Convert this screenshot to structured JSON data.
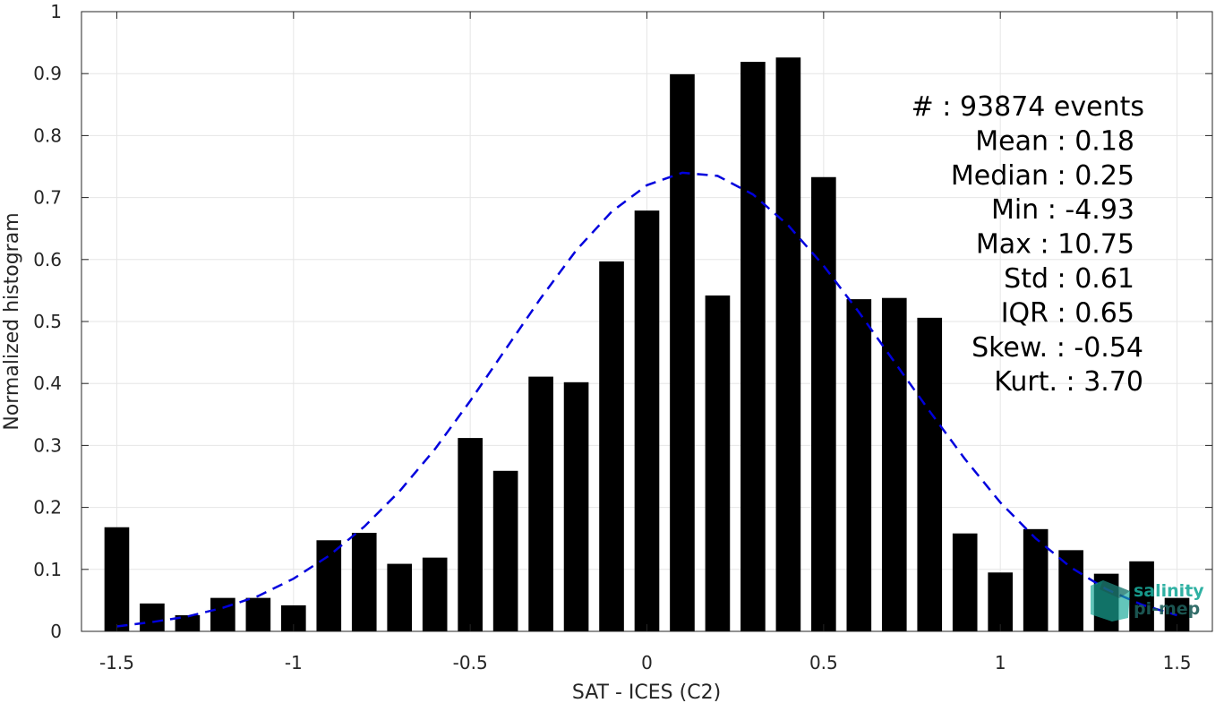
{
  "chart_data": {
    "type": "bar",
    "title": "",
    "xlabel": "SAT - ICES (C2)",
    "ylabel": "Normalized histogram",
    "xlim": [
      -1.6,
      1.6
    ],
    "ylim": [
      0,
      1
    ],
    "grid": true,
    "xticks": [
      -1.5,
      -1,
      -0.5,
      0,
      0.5,
      1,
      1.5
    ],
    "xtick_labels": [
      "-1.5",
      "-1",
      "-0.5",
      "0",
      "0.5",
      "1",
      "1.5"
    ],
    "yticks": [
      0,
      0.1,
      0.2,
      0.3,
      0.4,
      0.5,
      0.6,
      0.7,
      0.8,
      0.9,
      1
    ],
    "ytick_labels": [
      "0",
      "0.1",
      "0.2",
      "0.3",
      "0.4",
      "0.5",
      "0.6",
      "0.7",
      "0.8",
      "0.9",
      "1"
    ],
    "x": [
      -1.5,
      -1.4,
      -1.3,
      -1.2,
      -1.1,
      -1.0,
      -0.9,
      -0.8,
      -0.7,
      -0.6,
      -0.5,
      -0.4,
      -0.3,
      -0.2,
      -0.1,
      0.0,
      0.1,
      0.2,
      0.3,
      0.4,
      0.5,
      0.6,
      0.7,
      0.8,
      0.9,
      1.0,
      1.1,
      1.2,
      1.3,
      1.4,
      1.5
    ],
    "values": [
      0.168,
      0.045,
      0.026,
      0.054,
      0.054,
      0.042,
      0.147,
      0.159,
      0.109,
      0.119,
      0.312,
      0.259,
      0.411,
      0.402,
      0.597,
      0.679,
      0.899,
      0.542,
      0.919,
      0.926,
      0.733,
      0.536,
      0.538,
      0.506,
      0.158,
      0.095,
      0.165,
      0.131,
      0.093,
      0.113,
      0.054
    ],
    "bar_width": 0.07,
    "bar_color": "#000000",
    "fit_curve": {
      "style": "dashed",
      "color": "#0000dd",
      "x": [
        -1.5,
        -1.4,
        -1.3,
        -1.2,
        -1.1,
        -1.0,
        -0.9,
        -0.8,
        -0.7,
        -0.6,
        -0.5,
        -0.4,
        -0.3,
        -0.2,
        -0.1,
        0.0,
        0.1,
        0.2,
        0.3,
        0.4,
        0.5,
        0.6,
        0.7,
        0.8,
        0.9,
        1.0,
        1.1,
        1.2,
        1.3,
        1.4,
        1.5
      ],
      "y": [
        0.008,
        0.015,
        0.024,
        0.038,
        0.057,
        0.085,
        0.122,
        0.169,
        0.226,
        0.294,
        0.372,
        0.455,
        0.538,
        0.615,
        0.677,
        0.72,
        0.74,
        0.735,
        0.705,
        0.655,
        0.59,
        0.515,
        0.435,
        0.355,
        0.278,
        0.208,
        0.15,
        0.103,
        0.068,
        0.043,
        0.026
      ]
    },
    "annotations": [
      {
        "label": "#  : 93874 events"
      },
      {
        "label": "Mean : 0.18"
      },
      {
        "label": "Median : 0.25"
      },
      {
        "label": "Min : -4.93"
      },
      {
        "label": "Max : 10.75"
      },
      {
        "label": "Std : 0.61"
      },
      {
        "label": "IQR : 0.65"
      },
      {
        "label": "Skew. : -0.54"
      },
      {
        "label": "Kurt. : 3.70"
      }
    ]
  },
  "logo": {
    "line1": "salinity",
    "line2": "pi-mep",
    "color1": "#1aa99a",
    "color2": "#1e5f5a"
  }
}
